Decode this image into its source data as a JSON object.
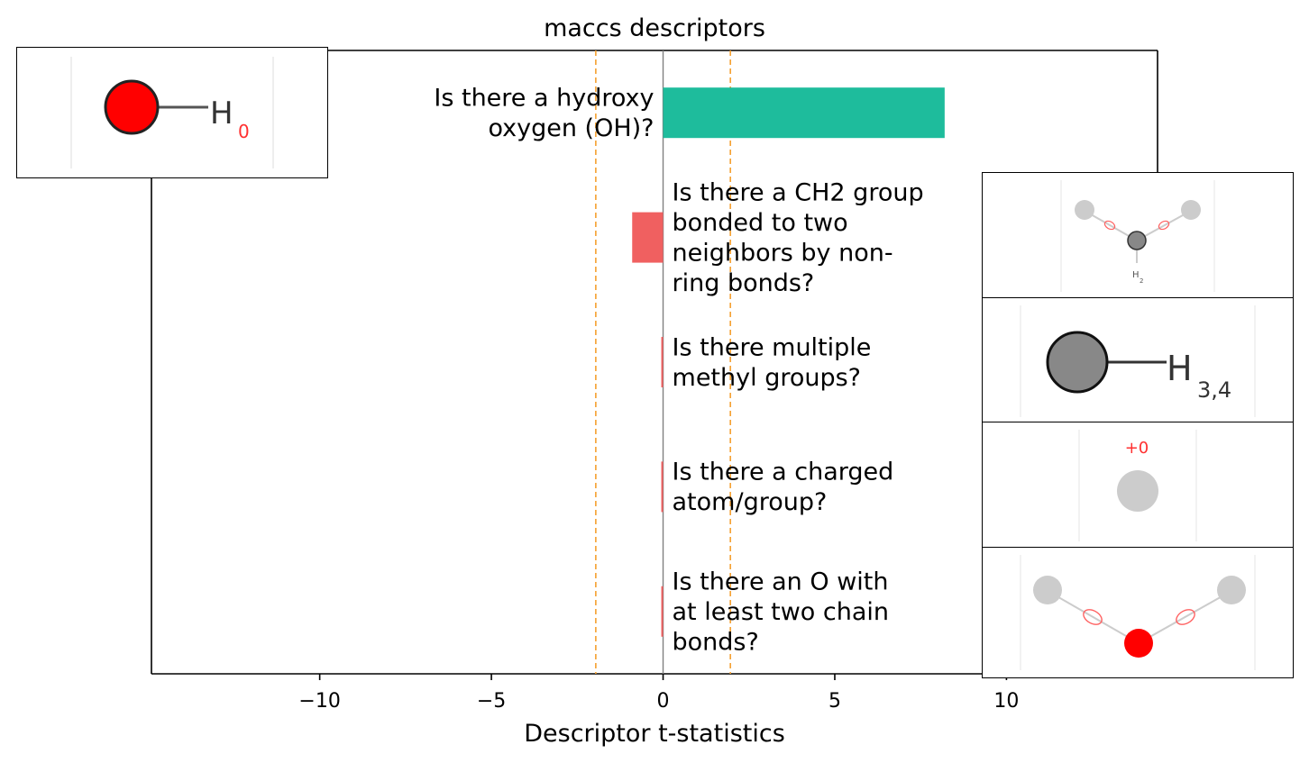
{
  "chart_data": {
    "type": "bar",
    "orientation": "horizontal",
    "title": "maccs descriptors",
    "xlabel": "Descriptor t-statistics",
    "ylabel": "",
    "xlim": [
      -14.9,
      14.4
    ],
    "xticks": [
      -10,
      -5,
      0,
      5,
      10
    ],
    "xtick_labels": [
      "−10",
      "−5",
      "0",
      "5",
      "10"
    ],
    "threshold_lines": [
      -1.96,
      1.96
    ],
    "categories": [
      "Is there a hydroxy oxygen (OH)?",
      "Is there a CH2 group bonded to two neighbors by non-ring bonds?",
      "Is there multiple methyl groups?",
      "Is there a charged atom/group?",
      "Is there an O with at least two chain bonds?"
    ],
    "label_lines": [
      [
        "Is there a hydroxy",
        "oxygen (OH)?"
      ],
      [
        "Is there a CH2 group",
        "bonded to two",
        "neighbors by non-",
        "ring bonds?"
      ],
      [
        "Is there multiple",
        "methyl groups?"
      ],
      [
        "Is there a charged",
        "atom/group?"
      ],
      [
        "Is there an O with",
        "at least two chain",
        "bonds?"
      ]
    ],
    "values": [
      8.2,
      -0.9,
      -0.05,
      -0.05,
      -0.05
    ],
    "grid": false,
    "colors": {
      "positive": "#1ebc9c",
      "negative": "#f06060",
      "threshold": "#f5a030",
      "zero_line": "#808080",
      "axis": "#000000"
    }
  },
  "insets": [
    {
      "name": "hydroxy-oxygen-structure",
      "atom_color": "#ff0000",
      "atom_label": "H",
      "subscript": "0",
      "subscript_color": "#ff3030"
    },
    {
      "name": "ch2-group-structure",
      "atom_color": "#888888",
      "atom_label": "H",
      "subscript": "2"
    },
    {
      "name": "methyl-groups-structure",
      "atom_color": "#888888",
      "atom_label": "H",
      "subscript": "3,4"
    },
    {
      "name": "charged-atom-structure",
      "atom_color": "#cccccc",
      "charge_label": "+0",
      "charge_color": "#ff3030"
    },
    {
      "name": "chain-oxygen-structure",
      "atom_color": "#ff0000",
      "neighbor_color": "#cccccc"
    }
  ]
}
